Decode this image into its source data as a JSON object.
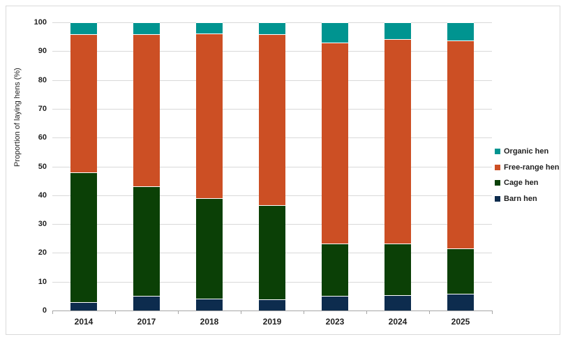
{
  "chart_data": {
    "type": "bar",
    "stacked": true,
    "title": "",
    "categories": [
      "2014",
      "2017",
      "2018",
      "2019",
      "2023",
      "2024",
      "2025"
    ],
    "series": [
      {
        "name": "Barn hen",
        "color": "#0D2C4E",
        "values": [
          3.0,
          5.0,
          4.0,
          3.8,
          5.2,
          5.4,
          5.7
        ]
      },
      {
        "name": "Cage hen",
        "color": "#0B4006",
        "values": [
          45.0,
          38.0,
          35.0,
          32.7,
          18.0,
          17.8,
          15.8
        ]
      },
      {
        "name": "Free-range hen",
        "color": "#CC4F24",
        "values": [
          48.0,
          53.0,
          57.2,
          59.5,
          69.8,
          71.0,
          72.2
        ]
      },
      {
        "name": "Organic hen",
        "color": "#009490",
        "values": [
          4.0,
          4.0,
          3.8,
          4.0,
          7.0,
          5.8,
          6.3
        ]
      }
    ],
    "xlabel": "",
    "ylabel": "Proportion of laying hens (%)",
    "ylim": [
      0,
      100
    ],
    "ytick_step": 10,
    "grid": true,
    "legend_position": "right",
    "legend_order": [
      "Organic hen",
      "Free-range hen",
      "Cage hen",
      "Barn hen"
    ]
  },
  "styles": {
    "grid_color": "#D9D9D9",
    "axis_color": "#A6A6A6",
    "text_color": "#1F1F1F",
    "frame_border_color": "#D9D9D9",
    "background": "#FFFFFF"
  }
}
